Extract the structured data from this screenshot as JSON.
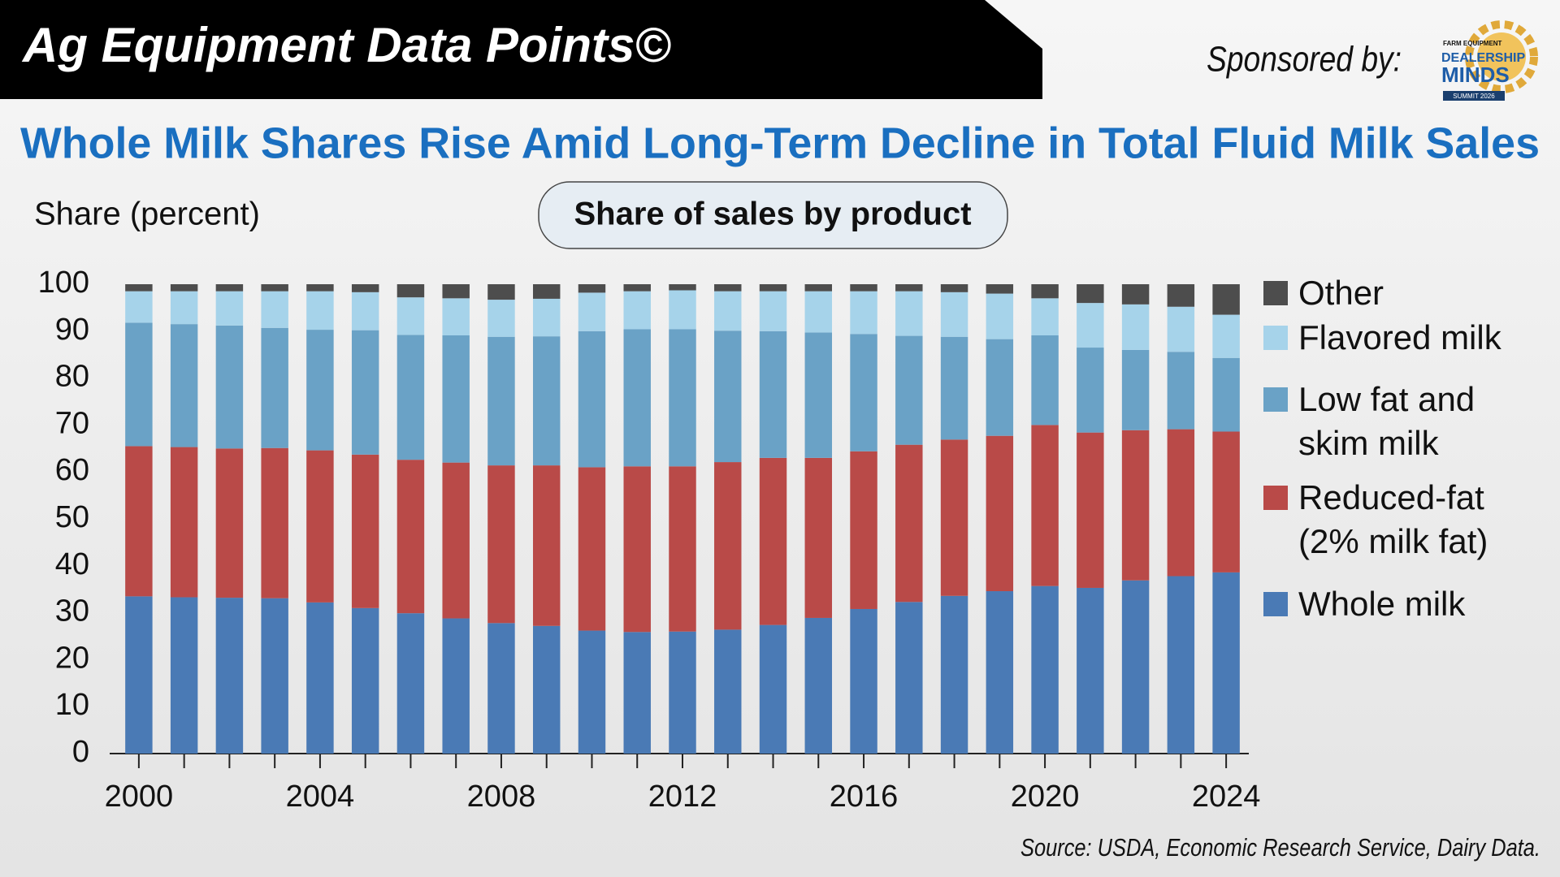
{
  "header": {
    "banner": "Ag Equipment Data Points©",
    "sponsor": "Sponsored by:",
    "logo": [
      "FARM EQUIPMENT",
      "DEALERSHIP",
      "MINDS",
      "SUMMIT 2026"
    ]
  },
  "source": "Source: USDA, Economic Research Service, Dairy Data.",
  "chart_data": {
    "type": "stacked-bar",
    "title": "Whole Milk Shares Rise Amid Long-Term Decline in Total Fluid Milk Sales",
    "subtitle": "Share of sales by product",
    "y_label": "Share (percent)",
    "categories": [
      "2000",
      null,
      null,
      null,
      "2004",
      null,
      null,
      null,
      "2008",
      null,
      null,
      null,
      "2012",
      null,
      null,
      null,
      "2016",
      null,
      null,
      null,
      "2020",
      null,
      null,
      null,
      "2024"
    ],
    "ylim": [
      0,
      100
    ],
    "yticks": [
      0,
      10,
      20,
      30,
      40,
      50,
      60,
      70,
      80,
      90,
      100
    ],
    "grid": false,
    "series": [
      {
        "name": "Whole milk",
        "color": "#4a7ab5",
        "values": [
          33.5,
          33.3,
          33.2,
          33.1,
          32.2,
          31.0,
          29.9,
          28.8,
          27.8,
          27.2,
          26.2,
          25.9,
          26.0,
          26.4,
          27.4,
          28.9,
          30.8,
          32.3,
          33.6,
          34.6,
          35.7,
          35.3,
          36.9,
          37.8,
          38.6
        ]
      },
      {
        "name": "Reduced-fat (2% milk fat)",
        "color": "#b94a48",
        "values": [
          32.0,
          32.0,
          31.8,
          32.0,
          32.4,
          32.7,
          32.7,
          33.2,
          33.6,
          34.2,
          34.8,
          35.3,
          35.2,
          35.7,
          35.6,
          34.1,
          33.6,
          33.5,
          33.3,
          33.1,
          34.3,
          33.1,
          32.0,
          31.3,
          30.0
        ]
      },
      {
        "name": "Low fat and skim milk",
        "color": "#6aa2c6",
        "values": [
          26.3,
          26.2,
          26.2,
          25.6,
          25.7,
          26.5,
          26.6,
          27.1,
          27.4,
          27.5,
          29.0,
          29.2,
          29.2,
          28.0,
          27.0,
          26.7,
          25.0,
          23.2,
          21.9,
          20.6,
          19.1,
          18.1,
          17.1,
          16.5,
          15.7
        ]
      },
      {
        "name": "Flavored milk",
        "color": "#a6d3ea",
        "values": [
          6.7,
          7.0,
          7.3,
          7.8,
          8.2,
          8.1,
          8.0,
          7.9,
          7.9,
          8.0,
          8.2,
          8.1,
          8.3,
          8.4,
          8.5,
          8.8,
          9.1,
          9.5,
          9.5,
          9.7,
          7.9,
          9.5,
          9.7,
          9.6,
          9.2
        ]
      },
      {
        "name": "Other",
        "color": "#4d4d4d",
        "values": [
          1.5,
          1.5,
          1.5,
          1.5,
          1.5,
          1.7,
          2.8,
          3.0,
          3.3,
          3.1,
          1.8,
          1.5,
          1.3,
          1.5,
          1.5,
          1.5,
          1.5,
          1.5,
          1.7,
          2.0,
          3.0,
          4.0,
          4.3,
          4.8,
          6.5
        ]
      }
    ]
  }
}
